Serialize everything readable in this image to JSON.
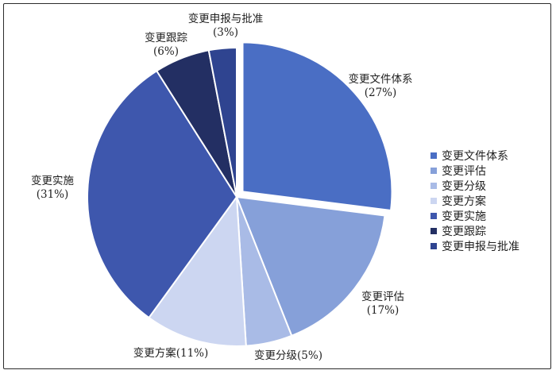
{
  "chart_data": {
    "type": "pie",
    "categories": [
      "变更文件体系",
      "变更评估",
      "变更分级",
      "变更方案",
      "变更实施",
      "变更跟踪",
      "变更申报与批准"
    ],
    "values": [
      27,
      17,
      5,
      11,
      31,
      6,
      3
    ],
    "unit": "%",
    "colors": [
      "#4a6ec4",
      "#86a0d9",
      "#a9bbe6",
      "#ccd6f1",
      "#3e57ad",
      "#232f63",
      "#2f4490"
    ],
    "exploded": [
      "变更文件体系"
    ],
    "legend": "right",
    "labels": [
      {
        "name": "变更文件体系",
        "pct": "(27%)"
      },
      {
        "name": "变更评估",
        "pct": "(17%)"
      },
      {
        "name": "变更分级(5%)",
        "pct": ""
      },
      {
        "name": "变更方案(11%)",
        "pct": ""
      },
      {
        "name": "变更实施",
        "pct": "(31%)"
      },
      {
        "name": "变更跟踪",
        "pct": "(6%)"
      },
      {
        "name": "变更申报与批准",
        "pct": "(3%)"
      }
    ]
  }
}
